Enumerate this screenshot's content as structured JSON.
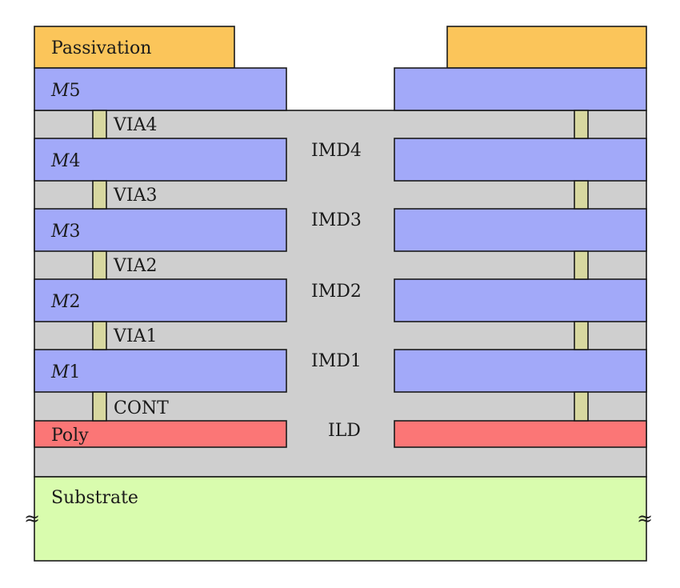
{
  "labels": {
    "passivation": "Passivation",
    "m5_letter": "M",
    "m5_num": "5",
    "m4_letter": "M",
    "m4_num": "4",
    "m3_letter": "M",
    "m3_num": "3",
    "m2_letter": "M",
    "m2_num": "2",
    "m1_letter": "M",
    "m1_num": "1",
    "via4": "VIA4",
    "via3": "VIA3",
    "via2": "VIA2",
    "via1": "VIA1",
    "cont": "CONT",
    "imd4": "IMD4",
    "imd3": "IMD3",
    "imd2": "IMD2",
    "imd1": "IMD1",
    "ild": "ILD",
    "poly": "Poly",
    "substrate": "Substrate",
    "break_left": "≈",
    "break_right": "≈"
  },
  "colors": {
    "passivation": "#fbc55a",
    "metal": "#a2a9f9",
    "dielectric": "#cfcfcf",
    "via": "#d8d8a0",
    "poly": "#fb7676",
    "substrate": "#d9fcae",
    "outline": "#1a1a1a"
  }
}
